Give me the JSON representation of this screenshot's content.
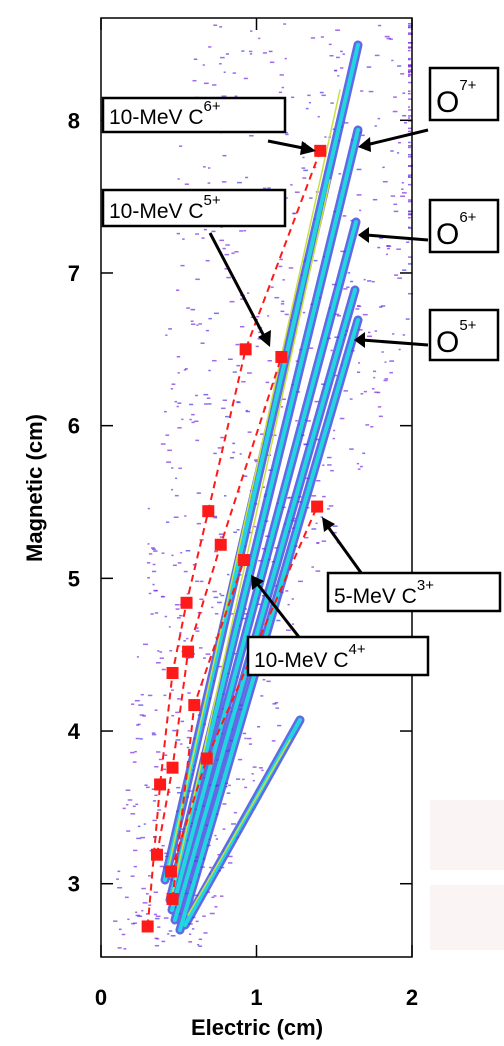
{
  "chart_data": {
    "type": "scatter",
    "x_label": "Electric (cm)",
    "y_label": "Magnetic (cm)",
    "xlim": [
      0,
      2
    ],
    "ylim": [
      2.52,
      8.67
    ],
    "xticks": [
      0,
      1,
      2
    ],
    "yticks": [
      3,
      4,
      5,
      6,
      7,
      8
    ],
    "series": [
      {
        "color": "#ff1a1a",
        "x": [
          0.3,
          0.38,
          0.46,
          0.55,
          0.69,
          0.93,
          1.41
        ],
        "y": [
          2.72,
          3.65,
          4.38,
          4.84,
          5.44,
          6.5,
          7.8
        ]
      },
      {
        "color": "#ff1a1a",
        "x": [
          0.36,
          0.46,
          0.56,
          0.77,
          1.16
        ],
        "y": [
          3.19,
          3.76,
          4.52,
          5.22,
          6.45
        ]
      },
      {
        "color": "#ff1a1a",
        "x": [
          0.46,
          0.6,
          0.92
        ],
        "y": [
          2.9,
          4.17,
          5.12
        ]
      },
      {
        "color": "#ff1a1a",
        "x": [
          0.45,
          0.68,
          1.39
        ],
        "y": [
          3.08,
          3.82,
          5.47
        ]
      }
    ],
    "annotations": [
      {
        "text": "10-MeV C",
        "sup": "6+"
      },
      {
        "text": "10-MeV C",
        "sup": "5+"
      },
      {
        "text": "O",
        "sup": "7+"
      },
      {
        "text": "O",
        "sup": "6+"
      },
      {
        "text": "O",
        "sup": "5+"
      },
      {
        "text": "5-MeV C",
        "sup": "3+"
      },
      {
        "text": "10-MeV C",
        "sup": "4+"
      }
    ]
  }
}
